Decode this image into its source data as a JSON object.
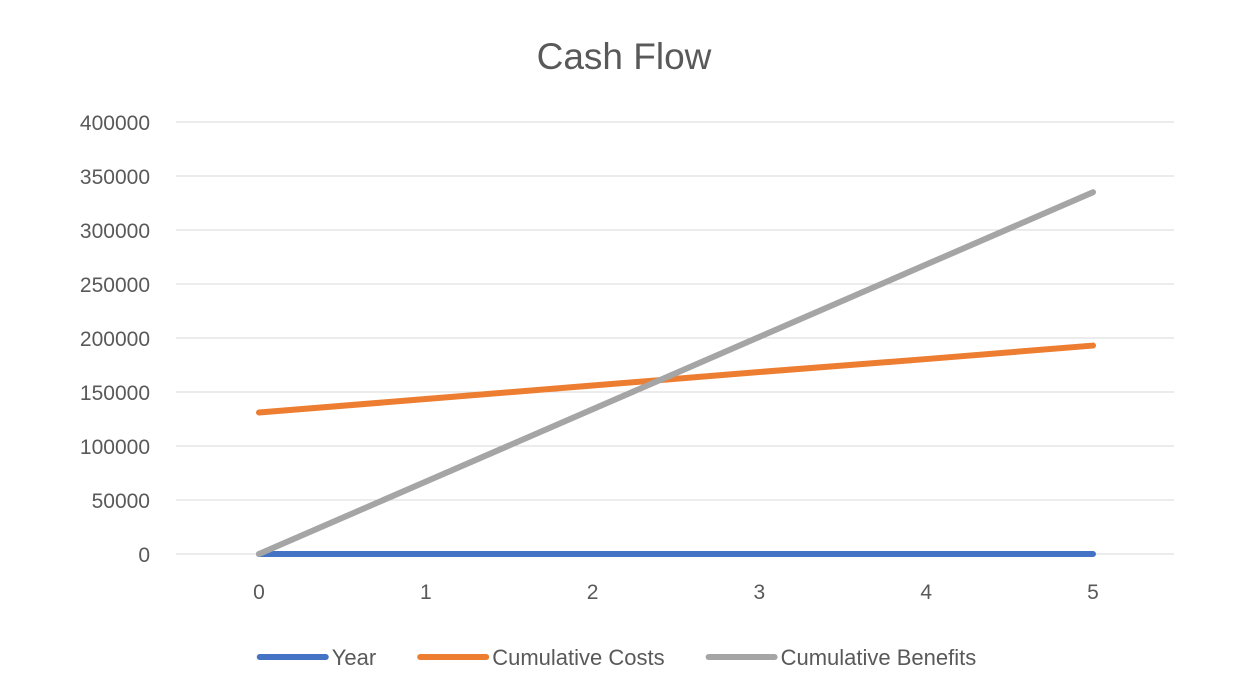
{
  "chart_data": {
    "type": "line",
    "title": "Cash Flow",
    "xlabel": "",
    "ylabel": "",
    "x": [
      0,
      1,
      2,
      3,
      4,
      5
    ],
    "x_tick_labels": [
      "0",
      "1",
      "2",
      "3",
      "4",
      "5"
    ],
    "y_tick_labels": [
      "400000",
      "350000",
      "300000",
      "250000",
      "200000",
      "150000",
      "100000",
      "50000",
      "0"
    ],
    "ylim": [
      0,
      400000
    ],
    "yticks": [
      0,
      50000,
      100000,
      150000,
      200000,
      250000,
      300000,
      350000,
      400000
    ],
    "grid": "horizontal",
    "legend_position": "bottom",
    "series": [
      {
        "name": "Year",
        "values": [
          0,
          1,
          2,
          3,
          4,
          5
        ],
        "color": "#4472c4"
      },
      {
        "name": "Cumulative Costs",
        "values": [
          131000,
          143500,
          156000,
          168500,
          180500,
          193000
        ],
        "color": "#ed7d31"
      },
      {
        "name": "Cumulative Benefits",
        "values": [
          0,
          67000,
          134000,
          201000,
          268000,
          335000
        ],
        "color": "#a5a5a5"
      }
    ]
  }
}
